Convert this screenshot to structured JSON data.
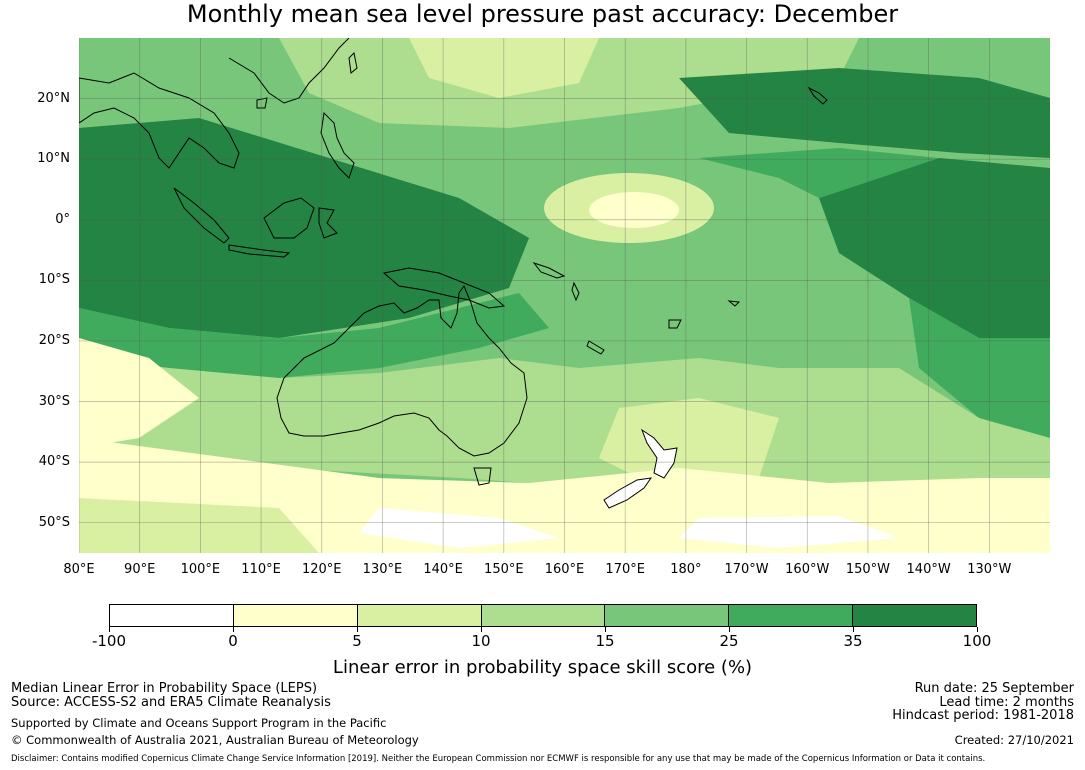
{
  "title": "Monthly mean sea level pressure past accuracy: December",
  "map": {
    "latitude_labels": [
      "20°N",
      "10°N",
      "0°",
      "10°S",
      "20°S",
      "30°S",
      "40°S",
      "50°S"
    ],
    "longitude_labels": [
      "80°E",
      "90°E",
      "100°E",
      "110°E",
      "120°E",
      "130°E",
      "140°E",
      "150°E",
      "160°E",
      "170°E",
      "180°",
      "170°W",
      "160°W",
      "150°W",
      "140°W",
      "130°W"
    ],
    "lat_range": [
      -55,
      30
    ],
    "lon_range_east": [
      80,
      240
    ],
    "gridlines": true
  },
  "colorbar": {
    "ticks": [
      "-100",
      "0",
      "5",
      "10",
      "15",
      "25",
      "35",
      "100"
    ],
    "colors": [
      "#ffffff",
      "#ffffcc",
      "#d9f0a3",
      "#addd8e",
      "#78c679",
      "#41ab5d",
      "#238443"
    ],
    "label": "Linear error in probability space skill score (%)"
  },
  "footer": {
    "method": "Median Linear Error in Probability Space (LEPS)",
    "source": "Source: ACCESS-S2 and ERA5 Climate Reanalysis",
    "support": "Supported by Climate and Oceans Support Program in the Pacific",
    "copyright": "© Commonwealth of Australia 2021, Australian Bureau of Meteorology",
    "run_date": "Run date: 25 September",
    "lead_time": "Lead time: 2 months",
    "hindcast": "Hindcast period: 1981-2018",
    "created": "Created: 27/10/2021",
    "disclaimer": "Disclaimer: Contains modified Copernicus Climate Change Service Information [2019]. Neither the European Commission nor ECMWF is responsible for any use that may be made of the Copernicus Information or Data it contains."
  }
}
